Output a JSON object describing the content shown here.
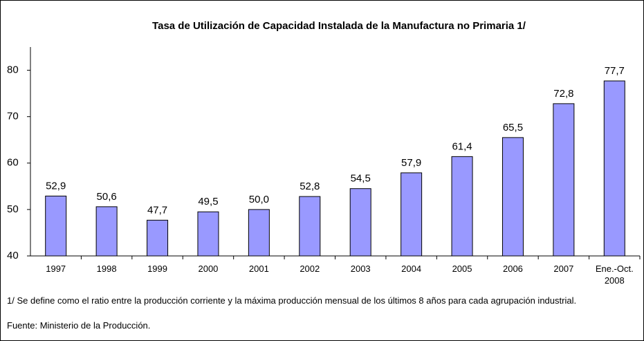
{
  "chart_data": {
    "type": "bar",
    "title": "Tasa de Utilización de Capacidad Instalada de la Manufactura no Primaria  1/",
    "categories": [
      "1997",
      "1998",
      "1999",
      "2000",
      "2001",
      "2002",
      "2003",
      "2004",
      "2005",
      "2006",
      "2007",
      "Ene.-Oct. 2008"
    ],
    "values": [
      52.9,
      50.6,
      47.7,
      49.5,
      50.0,
      52.8,
      54.5,
      57.9,
      61.4,
      65.5,
      72.8,
      77.7
    ],
    "value_labels": [
      "52,9",
      "50,6",
      "47,7",
      "49,5",
      "50,0",
      "52,8",
      "54,5",
      "57,9",
      "61,4",
      "65,5",
      "72,8",
      "77,7"
    ],
    "color": "#9999ff",
    "ylim": [
      40,
      85
    ],
    "yticks": [
      40,
      50,
      60,
      70,
      80
    ],
    "grid": false,
    "footnote": "1/ Se define como el ratio entre la producción corriente  y la máxima producción mensual de los últimos 8 años para cada agrupación industrial.",
    "source": "Fuente: Ministerio de la Producción."
  }
}
